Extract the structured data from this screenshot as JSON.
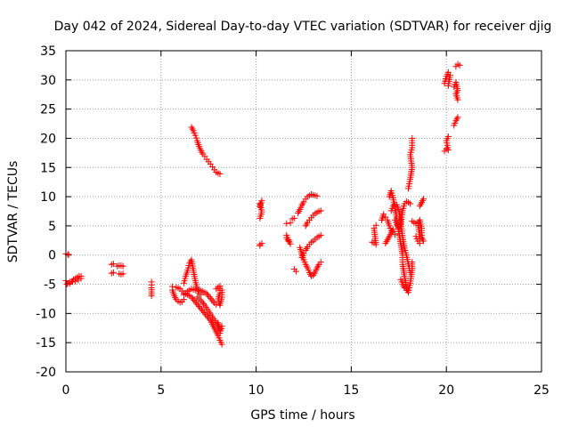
{
  "chart_data": {
    "type": "scatter",
    "title": "Day 042 of 2024, Sidereal Day-to-day VTEC variation (SDTVAR) for receiver djig",
    "xlabel": "GPS time / hours",
    "ylabel": "SDTVAR / TECUs",
    "xlim": [
      0,
      25
    ],
    "ylim": [
      -20,
      35
    ],
    "xticks": [
      0,
      5,
      10,
      15,
      20,
      25
    ],
    "yticks": [
      -20,
      -15,
      -10,
      -5,
      0,
      5,
      10,
      15,
      20,
      25,
      30,
      35
    ],
    "grid": true,
    "marker": "plus",
    "color": "#ff0000",
    "series": [
      {
        "name": "SDTVAR",
        "tracks": [
          [
            [
              0.0,
              0.2
            ],
            [
              0.1,
              0.1
            ],
            [
              0.15,
              0.1
            ]
          ],
          [
            [
              0.0,
              -4.4
            ],
            [
              0.1,
              -4.8
            ],
            [
              0.2,
              -4.6
            ],
            [
              0.3,
              -4.5
            ],
            [
              0.4,
              -4.2
            ],
            [
              0.5,
              -4.0
            ],
            [
              0.6,
              -3.8
            ],
            [
              0.7,
              -3.6
            ],
            [
              0.8,
              -3.6
            ]
          ],
          [
            [
              0.05,
              -5.0
            ],
            [
              0.2,
              -4.9
            ],
            [
              0.35,
              -4.6
            ],
            [
              0.5,
              -4.5
            ],
            [
              0.65,
              -4.3
            ],
            [
              0.8,
              -4.0
            ]
          ],
          [
            [
              2.4,
              -1.6
            ],
            [
              2.5,
              -1.5
            ]
          ],
          [
            [
              2.4,
              -3.1
            ],
            [
              2.5,
              -3.0
            ]
          ],
          [
            [
              2.7,
              -1.9
            ],
            [
              2.8,
              -1.8
            ],
            [
              2.9,
              -1.8
            ],
            [
              3.0,
              -1.9
            ]
          ],
          [
            [
              2.8,
              -3.2
            ],
            [
              2.9,
              -3.3
            ],
            [
              3.0,
              -3.2
            ]
          ],
          [
            [
              4.5,
              -4.6
            ],
            [
              4.5,
              -5.6
            ],
            [
              4.5,
              -7.0
            ]
          ],
          [
            [
              6.6,
              21.9
            ],
            [
              6.7,
              21.3
            ],
            [
              6.8,
              20.5
            ],
            [
              6.9,
              19.6
            ],
            [
              7.0,
              18.6
            ],
            [
              7.1,
              17.9
            ],
            [
              7.2,
              17.3
            ],
            [
              7.3,
              16.9
            ],
            [
              7.4,
              16.4
            ],
            [
              7.5,
              16.0
            ],
            [
              7.6,
              15.6
            ],
            [
              7.7,
              15.1
            ],
            [
              7.8,
              14.6
            ],
            [
              7.9,
              14.2
            ],
            [
              8.0,
              14.0
            ],
            [
              8.1,
              13.9
            ]
          ],
          [
            [
              5.6,
              -6.0
            ],
            [
              5.7,
              -7.0
            ],
            [
              5.8,
              -7.6
            ],
            [
              5.9,
              -7.9
            ],
            [
              6.0,
              -8.1
            ],
            [
              6.1,
              -8.0
            ],
            [
              6.2,
              -7.6
            ]
          ],
          [
            [
              5.6,
              -5.4
            ],
            [
              5.8,
              -5.5
            ],
            [
              6.0,
              -5.8
            ],
            [
              6.2,
              -6.5
            ],
            [
              6.4,
              -6.8
            ],
            [
              6.6,
              -7.2
            ],
            [
              6.8,
              -8.0
            ],
            [
              7.0,
              -8.8
            ],
            [
              7.2,
              -9.6
            ],
            [
              7.4,
              -10.4
            ],
            [
              7.6,
              -11.2
            ],
            [
              7.8,
              -12.5
            ],
            [
              8.0,
              -13.8
            ],
            [
              8.1,
              -14.6
            ],
            [
              8.2,
              -15.3
            ]
          ],
          [
            [
              6.2,
              -4.8
            ],
            [
              6.3,
              -3.6
            ],
            [
              6.4,
              -2.6
            ],
            [
              6.5,
              -1.4
            ],
            [
              6.6,
              -0.8
            ],
            [
              6.7,
              -2.6
            ],
            [
              6.8,
              -4.4
            ],
            [
              6.9,
              -5.8
            ],
            [
              7.0,
              -6.5
            ],
            [
              7.1,
              -6.8
            ]
          ],
          [
            [
              6.2,
              -6.8
            ],
            [
              6.4,
              -6.2
            ],
            [
              6.6,
              -5.8
            ],
            [
              6.8,
              -6.0
            ],
            [
              7.0,
              -6.0
            ],
            [
              7.2,
              -6.2
            ],
            [
              7.4,
              -6.6
            ],
            [
              7.6,
              -7.4
            ],
            [
              7.8,
              -8.2
            ],
            [
              7.9,
              -8.5
            ]
          ],
          [
            [
              6.9,
              -7.2
            ],
            [
              7.1,
              -7.8
            ],
            [
              7.3,
              -8.6
            ],
            [
              7.5,
              -9.6
            ],
            [
              7.7,
              -10.6
            ],
            [
              7.9,
              -11.6
            ],
            [
              8.0,
              -12.2
            ],
            [
              8.1,
              -12.8
            ]
          ],
          [
            [
              7.9,
              -5.8
            ],
            [
              8.0,
              -5.5
            ],
            [
              8.1,
              -5.3
            ],
            [
              8.1,
              -6.5
            ],
            [
              8.0,
              -7.5
            ],
            [
              8.1,
              -8.6
            ],
            [
              8.2,
              -7.2
            ],
            [
              8.2,
              -6.0
            ]
          ],
          [
            [
              8.0,
              -11.6
            ],
            [
              8.1,
              -12.6
            ],
            [
              8.2,
              -12.2
            ],
            [
              8.1,
              -13.4
            ]
          ],
          [
            [
              10.2,
              1.6
            ],
            [
              10.3,
              2.0
            ],
            [
              10.2,
              1.8
            ]
          ],
          [
            [
              10.2,
              6.3
            ],
            [
              10.3,
              7.4
            ],
            [
              10.2,
              8.8
            ],
            [
              10.3,
              9.3
            ],
            [
              10.2,
              8.3
            ]
          ],
          [
            [
              11.6,
              5.4
            ],
            [
              11.8,
              5.5
            ]
          ],
          [
            [
              11.6,
              3.4
            ],
            [
              11.7,
              2.6
            ],
            [
              11.8,
              1.9
            ],
            [
              11.7,
              2.4
            ],
            [
              11.6,
              3.0
            ]
          ],
          [
            [
              11.9,
              6.2
            ],
            [
              12.0,
              6.3
            ]
          ],
          [
            [
              12.0,
              -2.4
            ],
            [
              12.1,
              -2.8
            ]
          ],
          [
            [
              12.2,
              7.2
            ],
            [
              12.3,
              7.8
            ],
            [
              12.4,
              8.5
            ],
            [
              12.5,
              9.1
            ],
            [
              12.6,
              9.6
            ],
            [
              12.7,
              10.0
            ],
            [
              12.8,
              10.2
            ],
            [
              12.9,
              10.4
            ],
            [
              13.0,
              10.3
            ],
            [
              13.1,
              10.2
            ],
            [
              13.2,
              10.1
            ]
          ],
          [
            [
              12.3,
              1.3
            ],
            [
              12.4,
              0.2
            ],
            [
              12.5,
              -0.8
            ],
            [
              12.6,
              -1.6
            ],
            [
              12.7,
              -2.2
            ],
            [
              12.8,
              -3.0
            ],
            [
              12.9,
              -3.6
            ],
            [
              13.0,
              -3.5
            ],
            [
              13.1,
              -2.9
            ],
            [
              13.2,
              -2.2
            ],
            [
              13.3,
              -1.6
            ],
            [
              13.4,
              -1.2
            ]
          ],
          [
            [
              12.4,
              -0.4
            ],
            [
              12.5,
              0.3
            ],
            [
              12.6,
              0.8
            ],
            [
              12.7,
              1.4
            ],
            [
              12.8,
              1.8
            ],
            [
              12.9,
              2.2
            ],
            [
              13.0,
              2.4
            ],
            [
              13.1,
              2.7
            ],
            [
              13.2,
              3.0
            ],
            [
              13.3,
              3.2
            ],
            [
              13.4,
              3.4
            ]
          ],
          [
            [
              12.6,
              5.0
            ],
            [
              12.7,
              5.6
            ],
            [
              12.8,
              6.0
            ],
            [
              12.9,
              6.4
            ],
            [
              13.0,
              6.8
            ],
            [
              13.1,
              7.1
            ],
            [
              13.2,
              7.3
            ],
            [
              13.3,
              7.5
            ],
            [
              13.4,
              7.6
            ]
          ],
          [
            [
              16.1,
              2.2
            ],
            [
              16.2,
              2.1
            ],
            [
              16.3,
              1.8
            ],
            [
              16.2,
              4.6
            ],
            [
              16.3,
              5.1
            ]
          ],
          [
            [
              16.6,
              6.0
            ],
            [
              16.7,
              7.0
            ],
            [
              16.8,
              6.5
            ],
            [
              16.9,
              6.0
            ],
            [
              17.0,
              5.0
            ],
            [
              17.1,
              4.2
            ],
            [
              17.2,
              4.0
            ],
            [
              17.3,
              3.5
            ]
          ],
          [
            [
              16.8,
              2.0
            ],
            [
              16.9,
              2.6
            ],
            [
              17.0,
              3.2
            ],
            [
              17.1,
              3.8
            ],
            [
              17.2,
              4.4
            ]
          ],
          [
            [
              17.0,
              10.0
            ],
            [
              17.1,
              11.0
            ],
            [
              17.2,
              9.8
            ],
            [
              17.3,
              8.0
            ],
            [
              17.4,
              6.0
            ],
            [
              17.5,
              4.0
            ],
            [
              17.6,
              2.0
            ],
            [
              17.7,
              0.0
            ],
            [
              17.7,
              -1.6
            ],
            [
              17.8,
              -3.6
            ],
            [
              17.9,
              -5.4
            ],
            [
              18.0,
              -6.4
            ],
            [
              18.1,
              -4.8
            ],
            [
              18.2,
              -2.6
            ],
            [
              18.2,
              -1.2
            ]
          ],
          [
            [
              17.1,
              7.6
            ],
            [
              17.2,
              8.4
            ],
            [
              17.3,
              8.6
            ],
            [
              17.4,
              8.6
            ],
            [
              17.5,
              7.8
            ],
            [
              17.6,
              5.6
            ],
            [
              17.7,
              3.0
            ],
            [
              17.8,
              1.2
            ],
            [
              17.9,
              0.0
            ],
            [
              18.0,
              -1.5
            ],
            [
              18.1,
              -3.0
            ]
          ],
          [
            [
              17.3,
              6.0
            ],
            [
              17.4,
              5.2
            ],
            [
              17.5,
              4.6
            ],
            [
              17.6,
              5.4
            ],
            [
              17.7,
              7.6
            ],
            [
              17.8,
              8.8
            ],
            [
              17.9,
              9.2
            ],
            [
              18.0,
              9.0
            ],
            [
              18.1,
              8.8
            ]
          ],
          [
            [
              17.6,
              -4.2
            ],
            [
              17.7,
              -5.0
            ],
            [
              17.8,
              -5.6
            ],
            [
              17.9,
              -6.0
            ],
            [
              18.0,
              -6.0
            ]
          ],
          [
            [
              18.0,
              11.4
            ],
            [
              18.1,
              13.0
            ],
            [
              18.2,
              15.0
            ],
            [
              18.1,
              17.2
            ],
            [
              18.2,
              18.4
            ],
            [
              18.2,
              20.0
            ]
          ],
          [
            [
              18.2,
              5.8
            ],
            [
              18.3,
              5.6
            ],
            [
              18.4,
              5.4
            ]
          ],
          [
            [
              18.4,
              3.2
            ],
            [
              18.5,
              2.4
            ],
            [
              18.6,
              2.0
            ],
            [
              18.6,
              3.6
            ],
            [
              18.5,
              5.4
            ],
            [
              18.6,
              6.0
            ],
            [
              18.7,
              4.6
            ],
            [
              18.7,
              3.0
            ],
            [
              18.8,
              2.4
            ]
          ],
          [
            [
              18.6,
              8.4
            ],
            [
              18.7,
              9.0
            ],
            [
              18.8,
              9.6
            ]
          ],
          [
            [
              19.9,
              17.8
            ],
            [
              20.0,
              18.2
            ],
            [
              20.1,
              18.0
            ],
            [
              20.0,
              19.6
            ],
            [
              20.1,
              20.3
            ]
          ],
          [
            [
              19.9,
              29.4
            ],
            [
              20.0,
              30.6
            ],
            [
              20.1,
              31.3
            ],
            [
              20.2,
              30.8
            ],
            [
              20.1,
              29.0
            ]
          ],
          [
            [
              20.4,
              28.8
            ],
            [
              20.5,
              29.6
            ],
            [
              20.6,
              28.2
            ],
            [
              20.5,
              27.6
            ],
            [
              20.6,
              26.6
            ]
          ],
          [
            [
              20.4,
              22.2
            ],
            [
              20.5,
              23.0
            ],
            [
              20.6,
              23.6
            ]
          ],
          [
            [
              20.5,
              32.3
            ],
            [
              20.6,
              32.7
            ],
            [
              20.7,
              32.5
            ]
          ]
        ]
      }
    ]
  }
}
